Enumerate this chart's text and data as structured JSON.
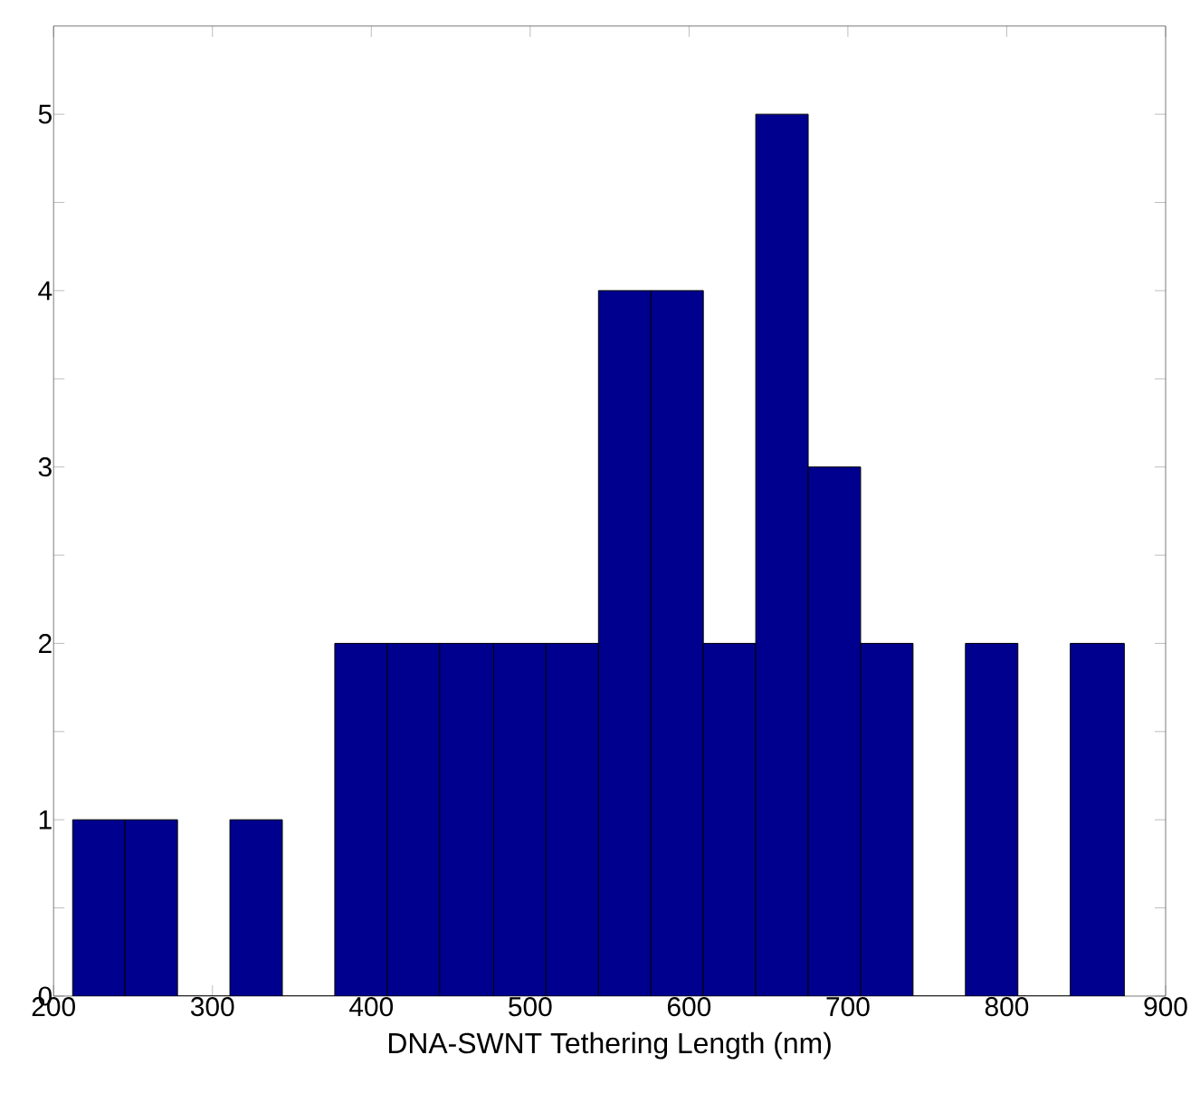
{
  "chart_data": {
    "type": "histogram",
    "xlabel": "DNA-SWNT Tethering Length (nm)",
    "bins": [
      212,
      245,
      278,
      311,
      344,
      377,
      410,
      443,
      477,
      510,
      543,
      576,
      609,
      642,
      675,
      708,
      741,
      774,
      807,
      840,
      874
    ],
    "values": [
      1,
      1,
      0,
      1,
      0,
      2,
      2,
      2,
      2,
      2,
      4,
      4,
      2,
      5,
      3,
      2,
      0,
      2,
      0,
      2
    ],
    "color": "#00008f",
    "xlim": [
      200,
      900
    ],
    "xticks": [
      200,
      300,
      400,
      500,
      600,
      700,
      800,
      900
    ],
    "ylim": [
      0,
      5.5
    ],
    "yticks": [
      0,
      {
        "value": 0.5,
        "label": null
      },
      1,
      {
        "value": 1.5,
        "label": null
      },
      2,
      {
        "value": 2.5,
        "label": null
      },
      3,
      {
        "value": 3.5,
        "label": null
      },
      4,
      {
        "value": 4.5,
        "label": null
      },
      5
    ],
    "grid": false
  }
}
